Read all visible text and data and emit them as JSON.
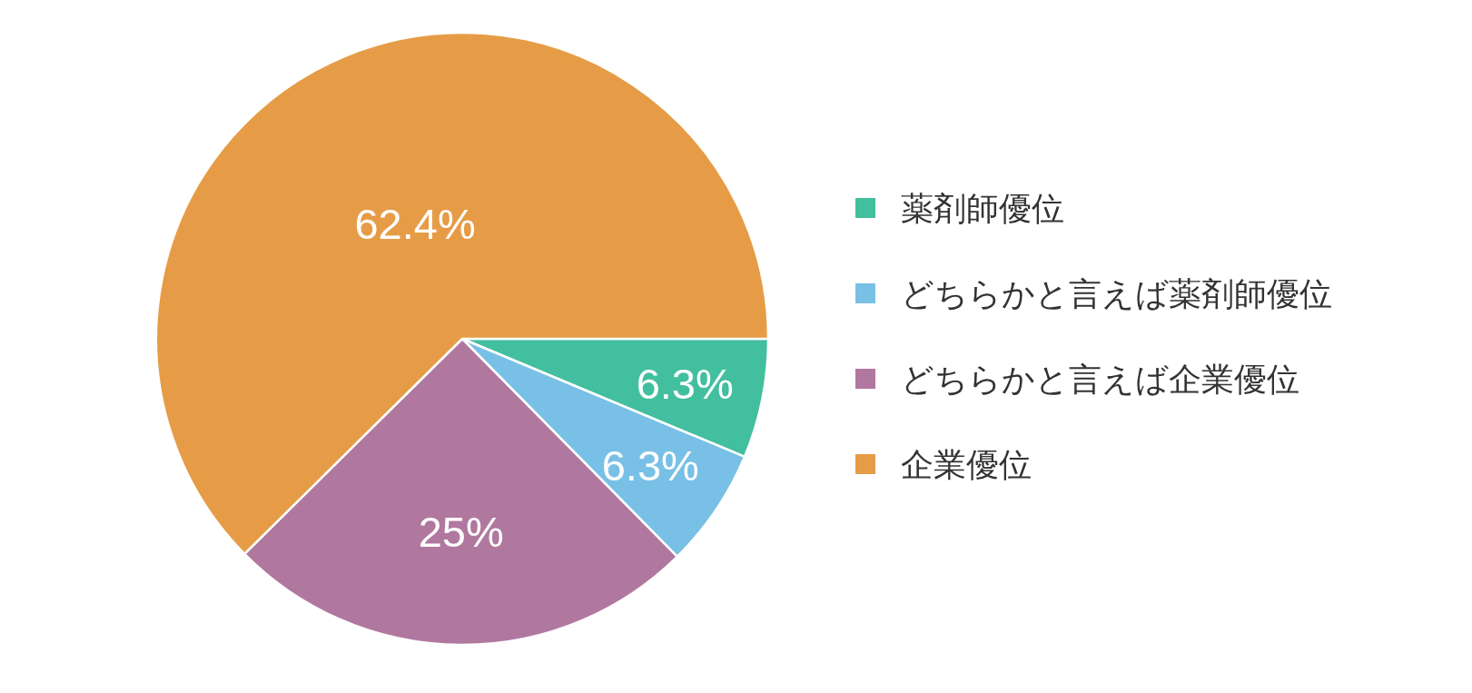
{
  "chart_data": {
    "type": "pie",
    "categories": [
      "薬剤師優位",
      "どちらかと言えば薬剤師優位",
      "どちらかと言えば企業優位",
      "企業優位"
    ],
    "values": [
      6.3,
      6.3,
      25,
      62.4
    ],
    "colors": [
      "#42bf9e",
      "#79c0e6",
      "#b0789f",
      "#e69c46"
    ],
    "value_labels": [
      "6.3%",
      "6.3%",
      "25%",
      "62.4%"
    ],
    "legend": "right"
  }
}
